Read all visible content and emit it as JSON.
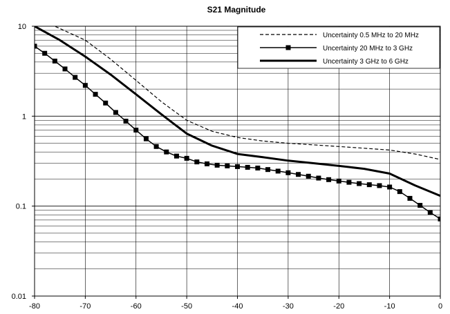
{
  "chart_data": {
    "type": "line",
    "title": "S21 Magnitude",
    "xlabel": "",
    "ylabel": "",
    "xlim": [
      -80,
      0
    ],
    "ylim": [
      0.01,
      10
    ],
    "yscale": "log",
    "grid": true,
    "legend_position": "top-right",
    "x_ticks": [
      -80,
      -70,
      -60,
      -50,
      -40,
      -30,
      -20,
      -10,
      0
    ],
    "y_ticks": [
      0.01,
      0.1,
      1,
      10
    ],
    "y_tick_labels": [
      "0.01",
      "0.1",
      "1",
      "10"
    ],
    "series": [
      {
        "name": "Uncertainty 0.5 MHz to 20 MHz",
        "style": "dashed",
        "color": "#000000",
        "x": [
          -80,
          -76,
          -70,
          -65,
          -60,
          -55,
          -50,
          -45,
          -40,
          -35,
          -30,
          -25,
          -20,
          -15,
          -10,
          -5,
          0
        ],
        "y": [
          12,
          10,
          7.0,
          4.3,
          2.5,
          1.45,
          0.9,
          0.68,
          0.58,
          0.53,
          0.5,
          0.48,
          0.46,
          0.44,
          0.42,
          0.38,
          0.33
        ]
      },
      {
        "name": "Uncertainty 20 MHz to  3 GHz",
        "style": "line-square-markers",
        "color": "#000000",
        "x": [
          -80,
          -78,
          -76,
          -74,
          -72,
          -70,
          -68,
          -66,
          -64,
          -62,
          -60,
          -58,
          -56,
          -54,
          -52,
          -50,
          -48,
          -46,
          -44,
          -42,
          -40,
          -38,
          -36,
          -34,
          -32,
          -30,
          -28,
          -26,
          -24,
          -22,
          -20,
          -18,
          -16,
          -14,
          -12,
          -10,
          -8,
          -6,
          -4,
          -2,
          0
        ],
        "y": [
          6.0,
          5.0,
          4.1,
          3.35,
          2.7,
          2.2,
          1.75,
          1.4,
          1.1,
          0.88,
          0.7,
          0.56,
          0.46,
          0.4,
          0.36,
          0.34,
          0.31,
          0.295,
          0.285,
          0.28,
          0.275,
          0.27,
          0.265,
          0.255,
          0.245,
          0.235,
          0.225,
          0.215,
          0.205,
          0.197,
          0.19,
          0.184,
          0.178,
          0.173,
          0.169,
          0.163,
          0.145,
          0.122,
          0.102,
          0.085,
          0.072
        ]
      },
      {
        "name": "Uncertainty 3 GHz to 6 GHz",
        "style": "thick",
        "color": "#000000",
        "x": [
          -80,
          -75,
          -70,
          -65,
          -60,
          -55,
          -50,
          -45,
          -40,
          -35,
          -30,
          -25,
          -20,
          -15,
          -10,
          -5,
          0
        ],
        "y": [
          10,
          7.0,
          4.6,
          2.9,
          1.75,
          1.05,
          0.64,
          0.47,
          0.38,
          0.35,
          0.32,
          0.3,
          0.28,
          0.26,
          0.23,
          0.17,
          0.13
        ]
      }
    ]
  }
}
